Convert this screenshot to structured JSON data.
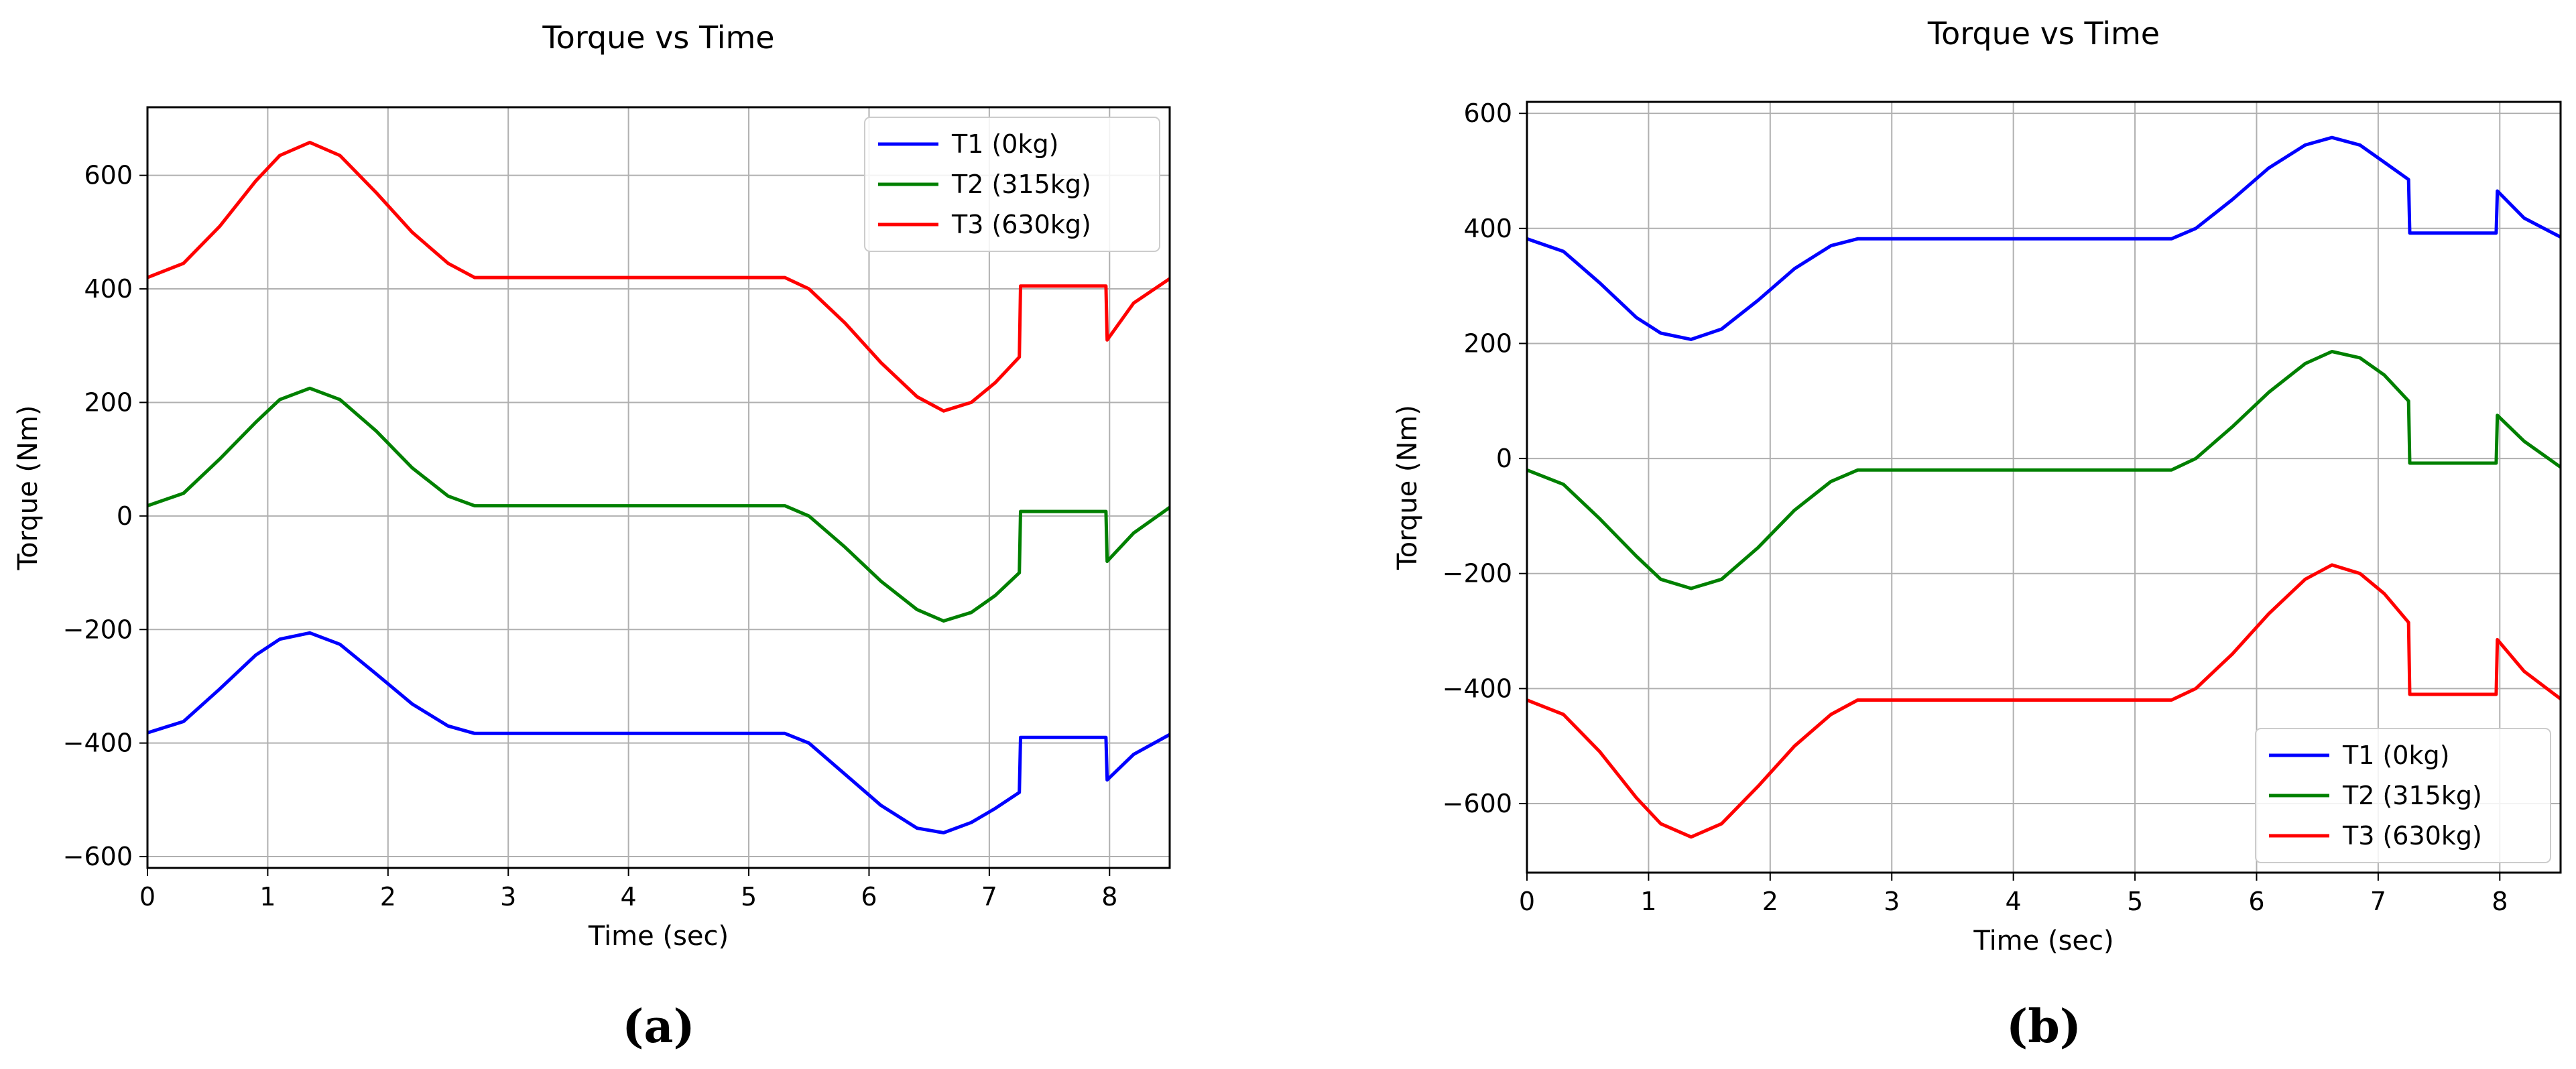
{
  "chart_data": [
    {
      "type": "line",
      "title": "Torque vs Time",
      "xlabel": "Time (sec)",
      "ylabel": "Torque (Nm)",
      "caption": "(a)",
      "xlim": [
        0,
        8.5
      ],
      "ylim": [
        -620,
        720
      ],
      "xticks": [
        0,
        1,
        2,
        3,
        4,
        5,
        6,
        7,
        8
      ],
      "yticks": [
        -600,
        -400,
        -200,
        0,
        200,
        400,
        600
      ],
      "grid": true,
      "legend_position": "top-right",
      "series": [
        {
          "name": "T1 (0kg)",
          "color": "#0000ff",
          "x": [
            0,
            0.3,
            0.6,
            0.9,
            1.1,
            1.35,
            1.6,
            1.9,
            2.2,
            2.5,
            2.72,
            3.5,
            4.5,
            5.3,
            5.5,
            5.8,
            6.1,
            6.4,
            6.62,
            6.85,
            7.05,
            7.25,
            7.26,
            7.97,
            7.98,
            8.2,
            8.5
          ],
          "y": [
            -382,
            -362,
            -305,
            -245,
            -217,
            -206,
            -226,
            -278,
            -331,
            -370,
            -383,
            -383,
            -383,
            -383,
            -400,
            -455,
            -510,
            -550,
            -558,
            -540,
            -515,
            -487,
            -390,
            -390,
            -465,
            -420,
            -385
          ]
        },
        {
          "name": "T2 (315kg)",
          "color": "#008000",
          "x": [
            0,
            0.3,
            0.6,
            0.9,
            1.1,
            1.35,
            1.6,
            1.9,
            2.2,
            2.5,
            2.72,
            3.5,
            4.5,
            5.3,
            5.5,
            5.8,
            6.1,
            6.4,
            6.62,
            6.85,
            7.05,
            7.25,
            7.26,
            7.97,
            7.98,
            8.2,
            8.5
          ],
          "y": [
            18,
            40,
            100,
            165,
            205,
            225,
            205,
            150,
            85,
            35,
            18,
            18,
            18,
            18,
            0,
            -55,
            -115,
            -165,
            -185,
            -170,
            -140,
            -100,
            8,
            8,
            -80,
            -30,
            15
          ]
        },
        {
          "name": "T3 (630kg)",
          "color": "#ff0000",
          "x": [
            0,
            0.3,
            0.6,
            0.9,
            1.1,
            1.35,
            1.6,
            1.9,
            2.2,
            2.5,
            2.72,
            3.5,
            4.5,
            5.3,
            5.5,
            5.8,
            6.1,
            6.4,
            6.62,
            6.85,
            7.05,
            7.25,
            7.26,
            7.97,
            7.98,
            8.2,
            8.5
          ],
          "y": [
            420,
            445,
            510,
            590,
            635,
            658,
            635,
            570,
            500,
            445,
            420,
            420,
            420,
            420,
            400,
            340,
            270,
            210,
            185,
            200,
            235,
            280,
            405,
            405,
            310,
            375,
            418
          ]
        }
      ]
    },
    {
      "type": "line",
      "title": "Torque vs Time",
      "xlabel": "Time (sec)",
      "ylabel": "Torque (Nm)",
      "caption": "(b)",
      "xlim": [
        0,
        8.5
      ],
      "ylim": [
        -720,
        620
      ],
      "xticks": [
        0,
        1,
        2,
        3,
        4,
        5,
        6,
        7,
        8
      ],
      "yticks": [
        -600,
        -400,
        -200,
        0,
        200,
        400,
        600
      ],
      "grid": true,
      "legend_position": "bottom-right",
      "series": [
        {
          "name": "T1 (0kg)",
          "color": "#0000ff",
          "x": [
            0,
            0.3,
            0.6,
            0.9,
            1.1,
            1.35,
            1.6,
            1.9,
            2.2,
            2.5,
            2.72,
            3.5,
            4.5,
            5.3,
            5.5,
            5.8,
            6.1,
            6.4,
            6.62,
            6.85,
            7.05,
            7.25,
            7.26,
            7.97,
            7.98,
            8.2,
            8.5
          ],
          "y": [
            382,
            360,
            305,
            245,
            218,
            207,
            225,
            275,
            330,
            370,
            382,
            382,
            382,
            382,
            400,
            450,
            505,
            545,
            558,
            545,
            515,
            485,
            392,
            392,
            465,
            418,
            385
          ]
        },
        {
          "name": "T2 (315kg)",
          "color": "#008000",
          "x": [
            0,
            0.3,
            0.6,
            0.9,
            1.1,
            1.35,
            1.6,
            1.9,
            2.2,
            2.5,
            2.72,
            3.5,
            4.5,
            5.3,
            5.5,
            5.8,
            6.1,
            6.4,
            6.62,
            6.85,
            7.05,
            7.25,
            7.26,
            7.97,
            7.98,
            8.2,
            8.5
          ],
          "y": [
            -20,
            -45,
            -105,
            -170,
            -210,
            -226,
            -210,
            -155,
            -90,
            -40,
            -20,
            -20,
            -20,
            -20,
            0,
            55,
            115,
            165,
            186,
            175,
            145,
            100,
            -8,
            -8,
            75,
            30,
            -15
          ]
        },
        {
          "name": "T3 (630kg)",
          "color": "#ff0000",
          "x": [
            0,
            0.3,
            0.6,
            0.9,
            1.1,
            1.35,
            1.6,
            1.9,
            2.2,
            2.5,
            2.72,
            3.5,
            4.5,
            5.3,
            5.5,
            5.8,
            6.1,
            6.4,
            6.62,
            6.85,
            7.05,
            7.25,
            7.26,
            7.97,
            7.98,
            8.2,
            8.5
          ],
          "y": [
            -420,
            -445,
            -510,
            -590,
            -635,
            -658,
            -635,
            -570,
            -500,
            -445,
            -420,
            -420,
            -420,
            -420,
            -400,
            -340,
            -270,
            -210,
            -185,
            -200,
            -235,
            -285,
            -410,
            -410,
            -315,
            -370,
            -418
          ]
        }
      ]
    }
  ]
}
